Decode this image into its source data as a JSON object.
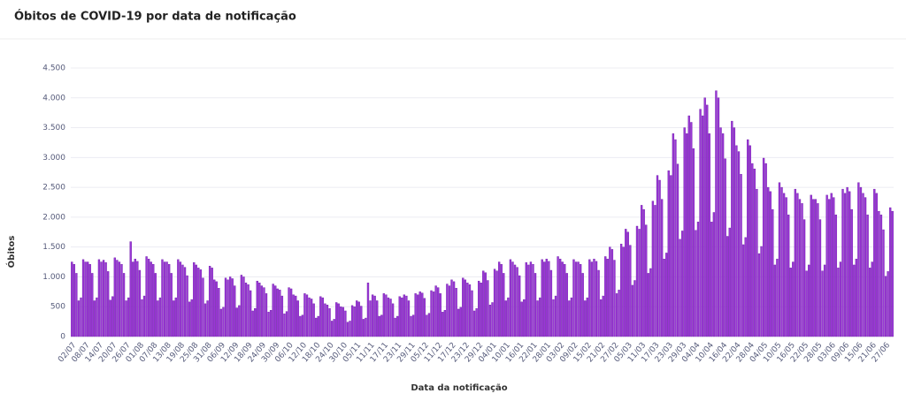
{
  "chart_data": {
    "type": "bar",
    "title": "Óbitos de COVID-19 por data de notificação",
    "x_label": "Data da notificação",
    "y_label": "Óbitos",
    "color": "#9a36d6",
    "grid": true,
    "ylim": [
      0,
      4500
    ],
    "yticks": [
      0,
      500,
      {
        "value": 1000,
        "label": "1.000"
      },
      {
        "value": 1500,
        "label": "1.500"
      },
      {
        "value": 2000,
        "label": "2.000"
      },
      {
        "value": 2500,
        "label": "2.500"
      },
      {
        "value": 3000,
        "label": "3.000"
      },
      {
        "value": 3500,
        "label": "3.500"
      },
      {
        "value": 4000,
        "label": "4.000"
      },
      {
        "value": 4500,
        "label": "4.500"
      }
    ],
    "categories": [
      "02/07",
      null,
      null,
      null,
      null,
      null,
      "08/07",
      null,
      null,
      null,
      null,
      null,
      "14/07",
      null,
      null,
      null,
      null,
      null,
      "20/07",
      null,
      null,
      null,
      null,
      null,
      "26/07",
      null,
      null,
      null,
      null,
      null,
      "01/08",
      null,
      null,
      null,
      null,
      null,
      "07/08",
      null,
      null,
      null,
      null,
      null,
      "13/08",
      null,
      null,
      null,
      null,
      null,
      "19/08",
      null,
      null,
      null,
      null,
      null,
      "25/08",
      null,
      null,
      null,
      null,
      null,
      "31/08",
      null,
      null,
      null,
      null,
      null,
      "06/09",
      null,
      null,
      null,
      null,
      null,
      "12/09",
      null,
      null,
      null,
      null,
      null,
      "18/09",
      null,
      null,
      null,
      null,
      null,
      "24/09",
      null,
      null,
      null,
      null,
      null,
      "30/09",
      null,
      null,
      null,
      null,
      null,
      "06/10",
      null,
      null,
      null,
      null,
      null,
      "12/10",
      null,
      null,
      null,
      null,
      null,
      "18/10",
      null,
      null,
      null,
      null,
      null,
      "24/10",
      null,
      null,
      null,
      null,
      null,
      "30/10",
      null,
      null,
      null,
      null,
      null,
      "05/11",
      null,
      null,
      null,
      null,
      null,
      "11/11",
      null,
      null,
      null,
      null,
      null,
      "17/11",
      null,
      null,
      null,
      null,
      null,
      "23/11",
      null,
      null,
      null,
      null,
      null,
      "29/11",
      null,
      null,
      null,
      null,
      null,
      "05/12",
      null,
      null,
      null,
      null,
      null,
      "11/12",
      null,
      null,
      null,
      null,
      null,
      "17/12",
      null,
      null,
      null,
      null,
      null,
      "23/12",
      null,
      null,
      null,
      null,
      null,
      "29/12",
      null,
      null,
      null,
      null,
      null,
      "04/01",
      null,
      null,
      null,
      null,
      null,
      "10/01",
      null,
      null,
      null,
      null,
      null,
      "16/01",
      null,
      null,
      null,
      null,
      null,
      "22/01",
      null,
      null,
      null,
      null,
      null,
      "28/01",
      null,
      null,
      null,
      null,
      null,
      "03/02",
      null,
      null,
      null,
      null,
      null,
      "09/02",
      null,
      null,
      null,
      null,
      null,
      "15/02",
      null,
      null,
      null,
      null,
      null,
      "21/02",
      null,
      null,
      null,
      null,
      null,
      "27/02",
      null,
      null,
      null,
      null,
      null,
      "05/03",
      null,
      null,
      null,
      null,
      null,
      "11/03",
      null,
      null,
      null,
      null,
      null,
      "17/03",
      null,
      null,
      null,
      null,
      null,
      "23/03",
      null,
      null,
      null,
      null,
      null,
      "29/03",
      null,
      null,
      null,
      null,
      null,
      "04/04",
      null,
      null,
      null,
      null,
      null,
      "10/04",
      null,
      null,
      null,
      null,
      null,
      "16/04",
      null,
      null,
      null,
      null,
      null,
      "22/04",
      null,
      null,
      null,
      null,
      null,
      "28/04",
      null,
      null,
      null,
      null,
      null,
      "04/05",
      null,
      null,
      null,
      null,
      null,
      "10/05",
      null,
      null,
      null,
      null,
      null,
      "16/05",
      null,
      null,
      null,
      null,
      null,
      "22/05",
      null,
      null,
      null,
      null,
      null,
      "28/05",
      null,
      null,
      null,
      null,
      null,
      "03/06",
      null,
      null,
      null,
      null,
      null,
      "09/06",
      null,
      null,
      null,
      null,
      null,
      "15/06",
      null,
      null,
      null,
      null,
      null,
      "21/06",
      null,
      null,
      null,
      null,
      null,
      "27/06",
      null,
      null,
      null
    ],
    "values": [
      1250,
      1210,
      1060,
      600,
      650,
      1290,
      1250,
      1250,
      1210,
      1060,
      600,
      650,
      1290,
      1250,
      1280,
      1240,
      1090,
      610,
      670,
      1320,
      1280,
      1250,
      1210,
      1060,
      600,
      650,
      1590,
      1250,
      1300,
      1260,
      1110,
      620,
      680,
      1340,
      1300,
      1250,
      1210,
      1060,
      600,
      650,
      1290,
      1250,
      1250,
      1210,
      1060,
      600,
      650,
      1290,
      1250,
      1200,
      1160,
      1020,
      580,
      620,
      1240,
      1200,
      1150,
      1120,
      980,
      550,
      600,
      1180,
      1150,
      950,
      920,
      810,
      460,
      490,
      980,
      950,
      1000,
      970,
      850,
      480,
      520,
      1030,
      1000,
      900,
      870,
      770,
      430,
      470,
      930,
      900,
      850,
      820,
      720,
      410,
      440,
      880,
      850,
      800,
      780,
      680,
      380,
      420,
      820,
      800,
      700,
      680,
      600,
      340,
      360,
      720,
      700,
      650,
      630,
      550,
      310,
      340,
      670,
      650,
      550,
      530,
      470,
      260,
      290,
      570,
      550,
      500,
      490,
      430,
      240,
      260,
      520,
      500,
      600,
      580,
      510,
      290,
      310,
      900,
      600,
      700,
      680,
      600,
      340,
      360,
      720,
      700,
      650,
      630,
      550,
      310,
      340,
      670,
      650,
      700,
      680,
      600,
      340,
      360,
      720,
      700,
      750,
      730,
      640,
      360,
      390,
      770,
      750,
      850,
      820,
      720,
      410,
      440,
      880,
      850,
      950,
      920,
      810,
      460,
      490,
      980,
      950,
      900,
      870,
      770,
      430,
      470,
      930,
      900,
      1100,
      1070,
      940,
      530,
      570,
      1130,
      1100,
      1250,
      1210,
      1060,
      600,
      650,
      1290,
      1250,
      1200,
      1160,
      1020,
      580,
      620,
      1240,
      1200,
      1250,
      1210,
      1060,
      600,
      650,
      1290,
      1250,
      1300,
      1260,
      1110,
      620,
      680,
      1340,
      1300,
      1250,
      1210,
      1060,
      600,
      650,
      1290,
      1250,
      1250,
      1210,
      1060,
      600,
      650,
      1290,
      1250,
      1300,
      1260,
      1110,
      620,
      680,
      1340,
      1300,
      1500,
      1460,
      1280,
      720,
      780,
      1550,
      1500,
      1800,
      1750,
      1530,
      860,
      940,
      1850,
      1800,
      2200,
      2130,
      1870,
      1060,
      1140,
      2270,
      2200,
      2700,
      2620,
      2300,
      1300,
      1400,
      2780,
      2700,
      3400,
      3300,
      2890,
      1630,
      1770,
      3500,
      3400,
      3700,
      3590,
      3150,
      1780,
      1920,
      3810,
      3700,
      4000,
      3880,
      3400,
      1920,
      2080,
      4120,
      4000,
      3500,
      3400,
      2980,
      1680,
      1820,
      3610,
      3500,
      3200,
      3100,
      2720,
      1540,
      1660,
      3300,
      3200,
      2900,
      2810,
      2470,
      1390,
      1510,
      2990,
      2900,
      2500,
      2430,
      2130,
      1200,
      1300,
      2580,
      2500,
      2400,
      2330,
      2040,
      1150,
      1250,
      2470,
      2400,
      2300,
      2230,
      1960,
      1100,
      1200,
      2370,
      2300,
      2300,
      2230,
      1960,
      1100,
      1200,
      2370,
      2300,
      2400,
      2330,
      2040,
      1150,
      1250,
      2470,
      2400,
      2500,
      2430,
      2130,
      1200,
      1300,
      2580,
      2500,
      2400,
      2330,
      2040,
      1150,
      1250,
      2470,
      2400,
      2100,
      2040,
      1790,
      1010,
      1090,
      2160,
      2100
    ]
  }
}
